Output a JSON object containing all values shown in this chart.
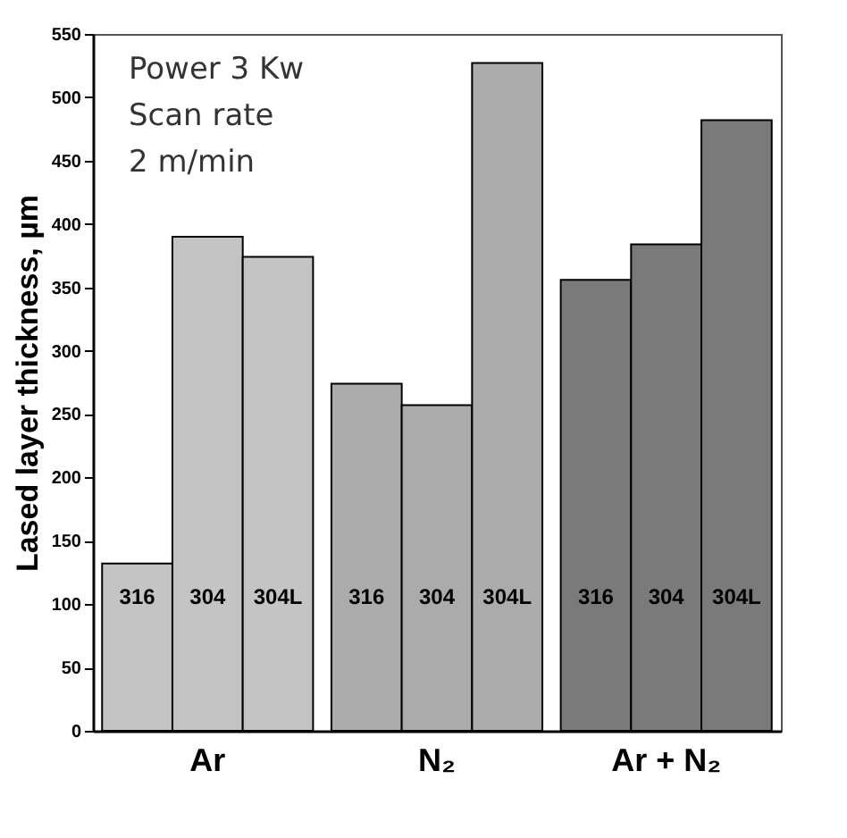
{
  "chart_data": {
    "type": "bar",
    "ylabel": "Lased layer thickness, µm",
    "categories": [
      "Ar",
      "N₂",
      "Ar + N₂"
    ],
    "series": [
      {
        "name": "316",
        "colors": [
          "#c4c4c4",
          "#ababab",
          "#7a7a7a"
        ],
        "values": [
          132,
          274,
          356
        ]
      },
      {
        "name": "304",
        "colors": [
          "#c4c4c4",
          "#ababab",
          "#7a7a7a"
        ],
        "values": [
          390,
          257,
          384
        ]
      },
      {
        "name": "304L",
        "colors": [
          "#c4c4c4",
          "#ababab",
          "#7a7a7a"
        ],
        "values": [
          374,
          527,
          482
        ]
      }
    ],
    "ylim": [
      0,
      550
    ],
    "yticks": [
      0,
      50,
      100,
      150,
      200,
      250,
      300,
      350,
      400,
      450,
      500,
      550
    ],
    "annotations": [
      "Power 3 Kw",
      "Scan rate",
      "2 m/min"
    ],
    "grid": false
  }
}
